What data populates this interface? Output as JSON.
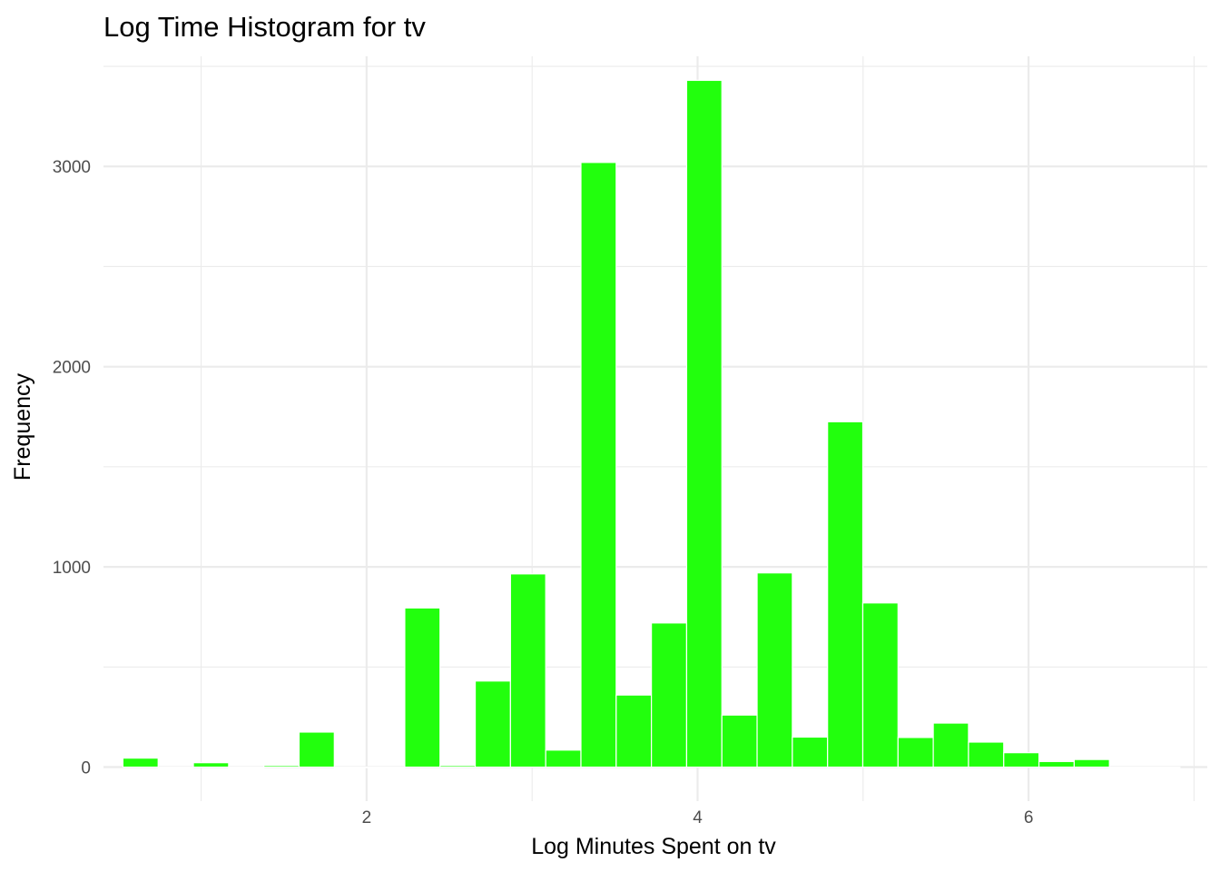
{
  "chart_data": {
    "type": "bar",
    "title": "Log Time Histogram for tv",
    "xlabel": "Log Minutes Spent on tv",
    "ylabel": "Frequency",
    "xlim": [
      0.41,
      7.08
    ],
    "ylim": [
      -170,
      3550
    ],
    "x_ticks": [
      2,
      4,
      6
    ],
    "x_minor_ticks": [
      1,
      3,
      5,
      7
    ],
    "y_ticks": [
      0,
      1000,
      2000,
      3000
    ],
    "y_minor_ticks": [
      500,
      1500,
      2500,
      3500
    ],
    "grid": true,
    "bar_color": "#22ff0d",
    "bin_width": 0.2129,
    "bin_centers": [
      0.6339,
      0.8468,
      1.0597,
      1.2726,
      1.4855,
      1.6984,
      1.9113,
      2.1242,
      2.3371,
      2.55,
      2.7629,
      2.9758,
      3.1887,
      3.4016,
      3.6145,
      3.8274,
      4.0403,
      4.2532,
      4.4661,
      4.679,
      4.8919,
      5.1048,
      5.3177,
      5.5306,
      5.7435,
      5.9564,
      6.1693,
      6.3822,
      6.5951,
      6.808
    ],
    "values": [
      45,
      0,
      22,
      0,
      8,
      175,
      0,
      0,
      795,
      8,
      430,
      965,
      85,
      3020,
      360,
      720,
      3430,
      260,
      970,
      150,
      1725,
      820,
      148,
      220,
      125,
      72,
      28,
      38,
      0,
      0
    ]
  }
}
